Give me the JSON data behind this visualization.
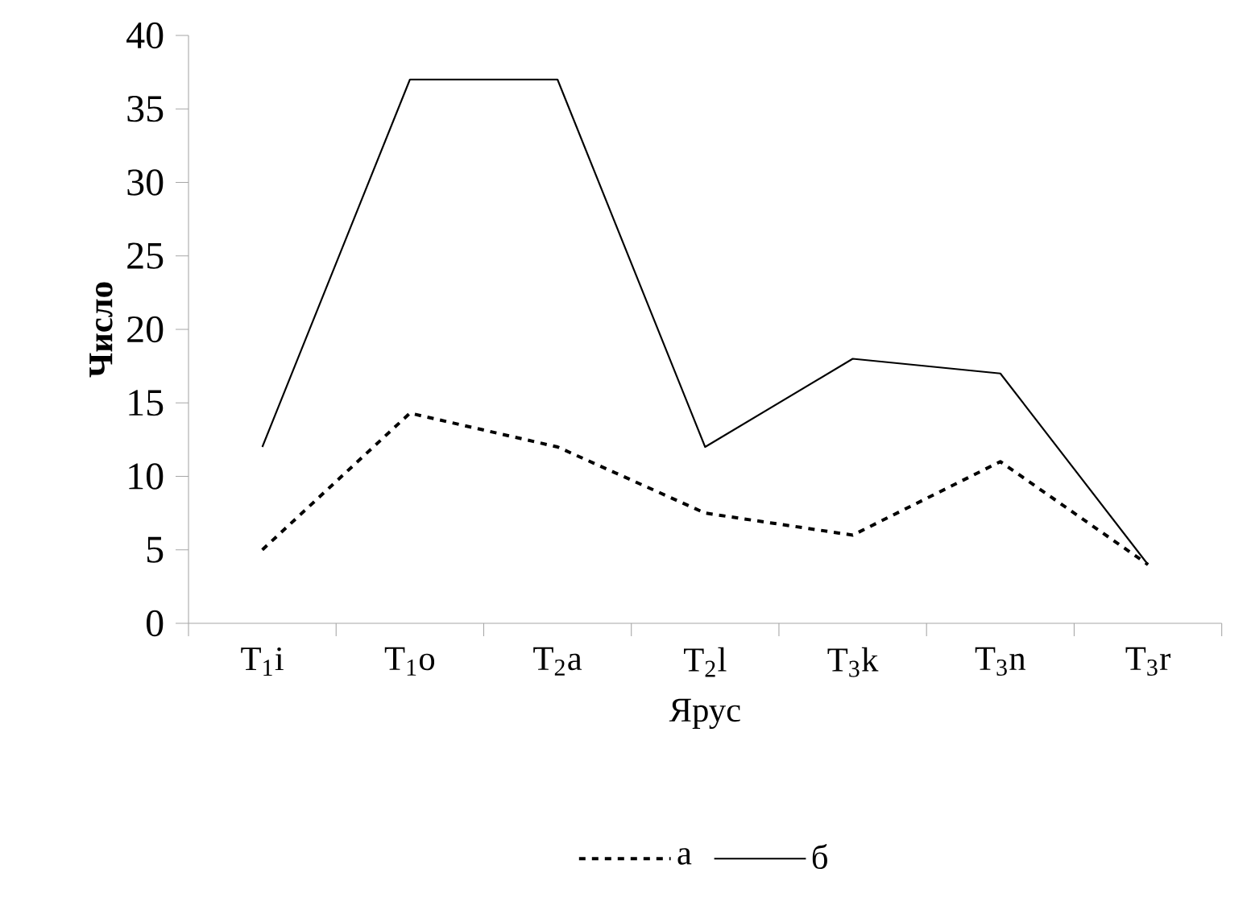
{
  "chart_data": {
    "type": "line",
    "xlabel": "Ярус",
    "ylabel": "Число",
    "categories": [
      "T$_{1}$i",
      "T$_{1}$o",
      "T$_{2}$a",
      "T$_{2}$l",
      "T$_{3}$k",
      "T$_{3}$n",
      "T$_{3}$r"
    ],
    "series": [
      {
        "name": "а",
        "color": "#000000",
        "line_style": "dashed",
        "values": [
          5,
          14.3,
          12,
          7.5,
          6,
          11,
          4
        ]
      },
      {
        "name": "б",
        "color": "#000000",
        "line_style": "solid",
        "values": [
          12,
          37,
          37,
          12,
          18,
          17,
          4
        ]
      }
    ],
    "ylim": [
      0,
      40
    ],
    "yticks": [
      0,
      5,
      10,
      15,
      20,
      25,
      30,
      35,
      40
    ],
    "legend": "bottom",
    "grid": false
  }
}
